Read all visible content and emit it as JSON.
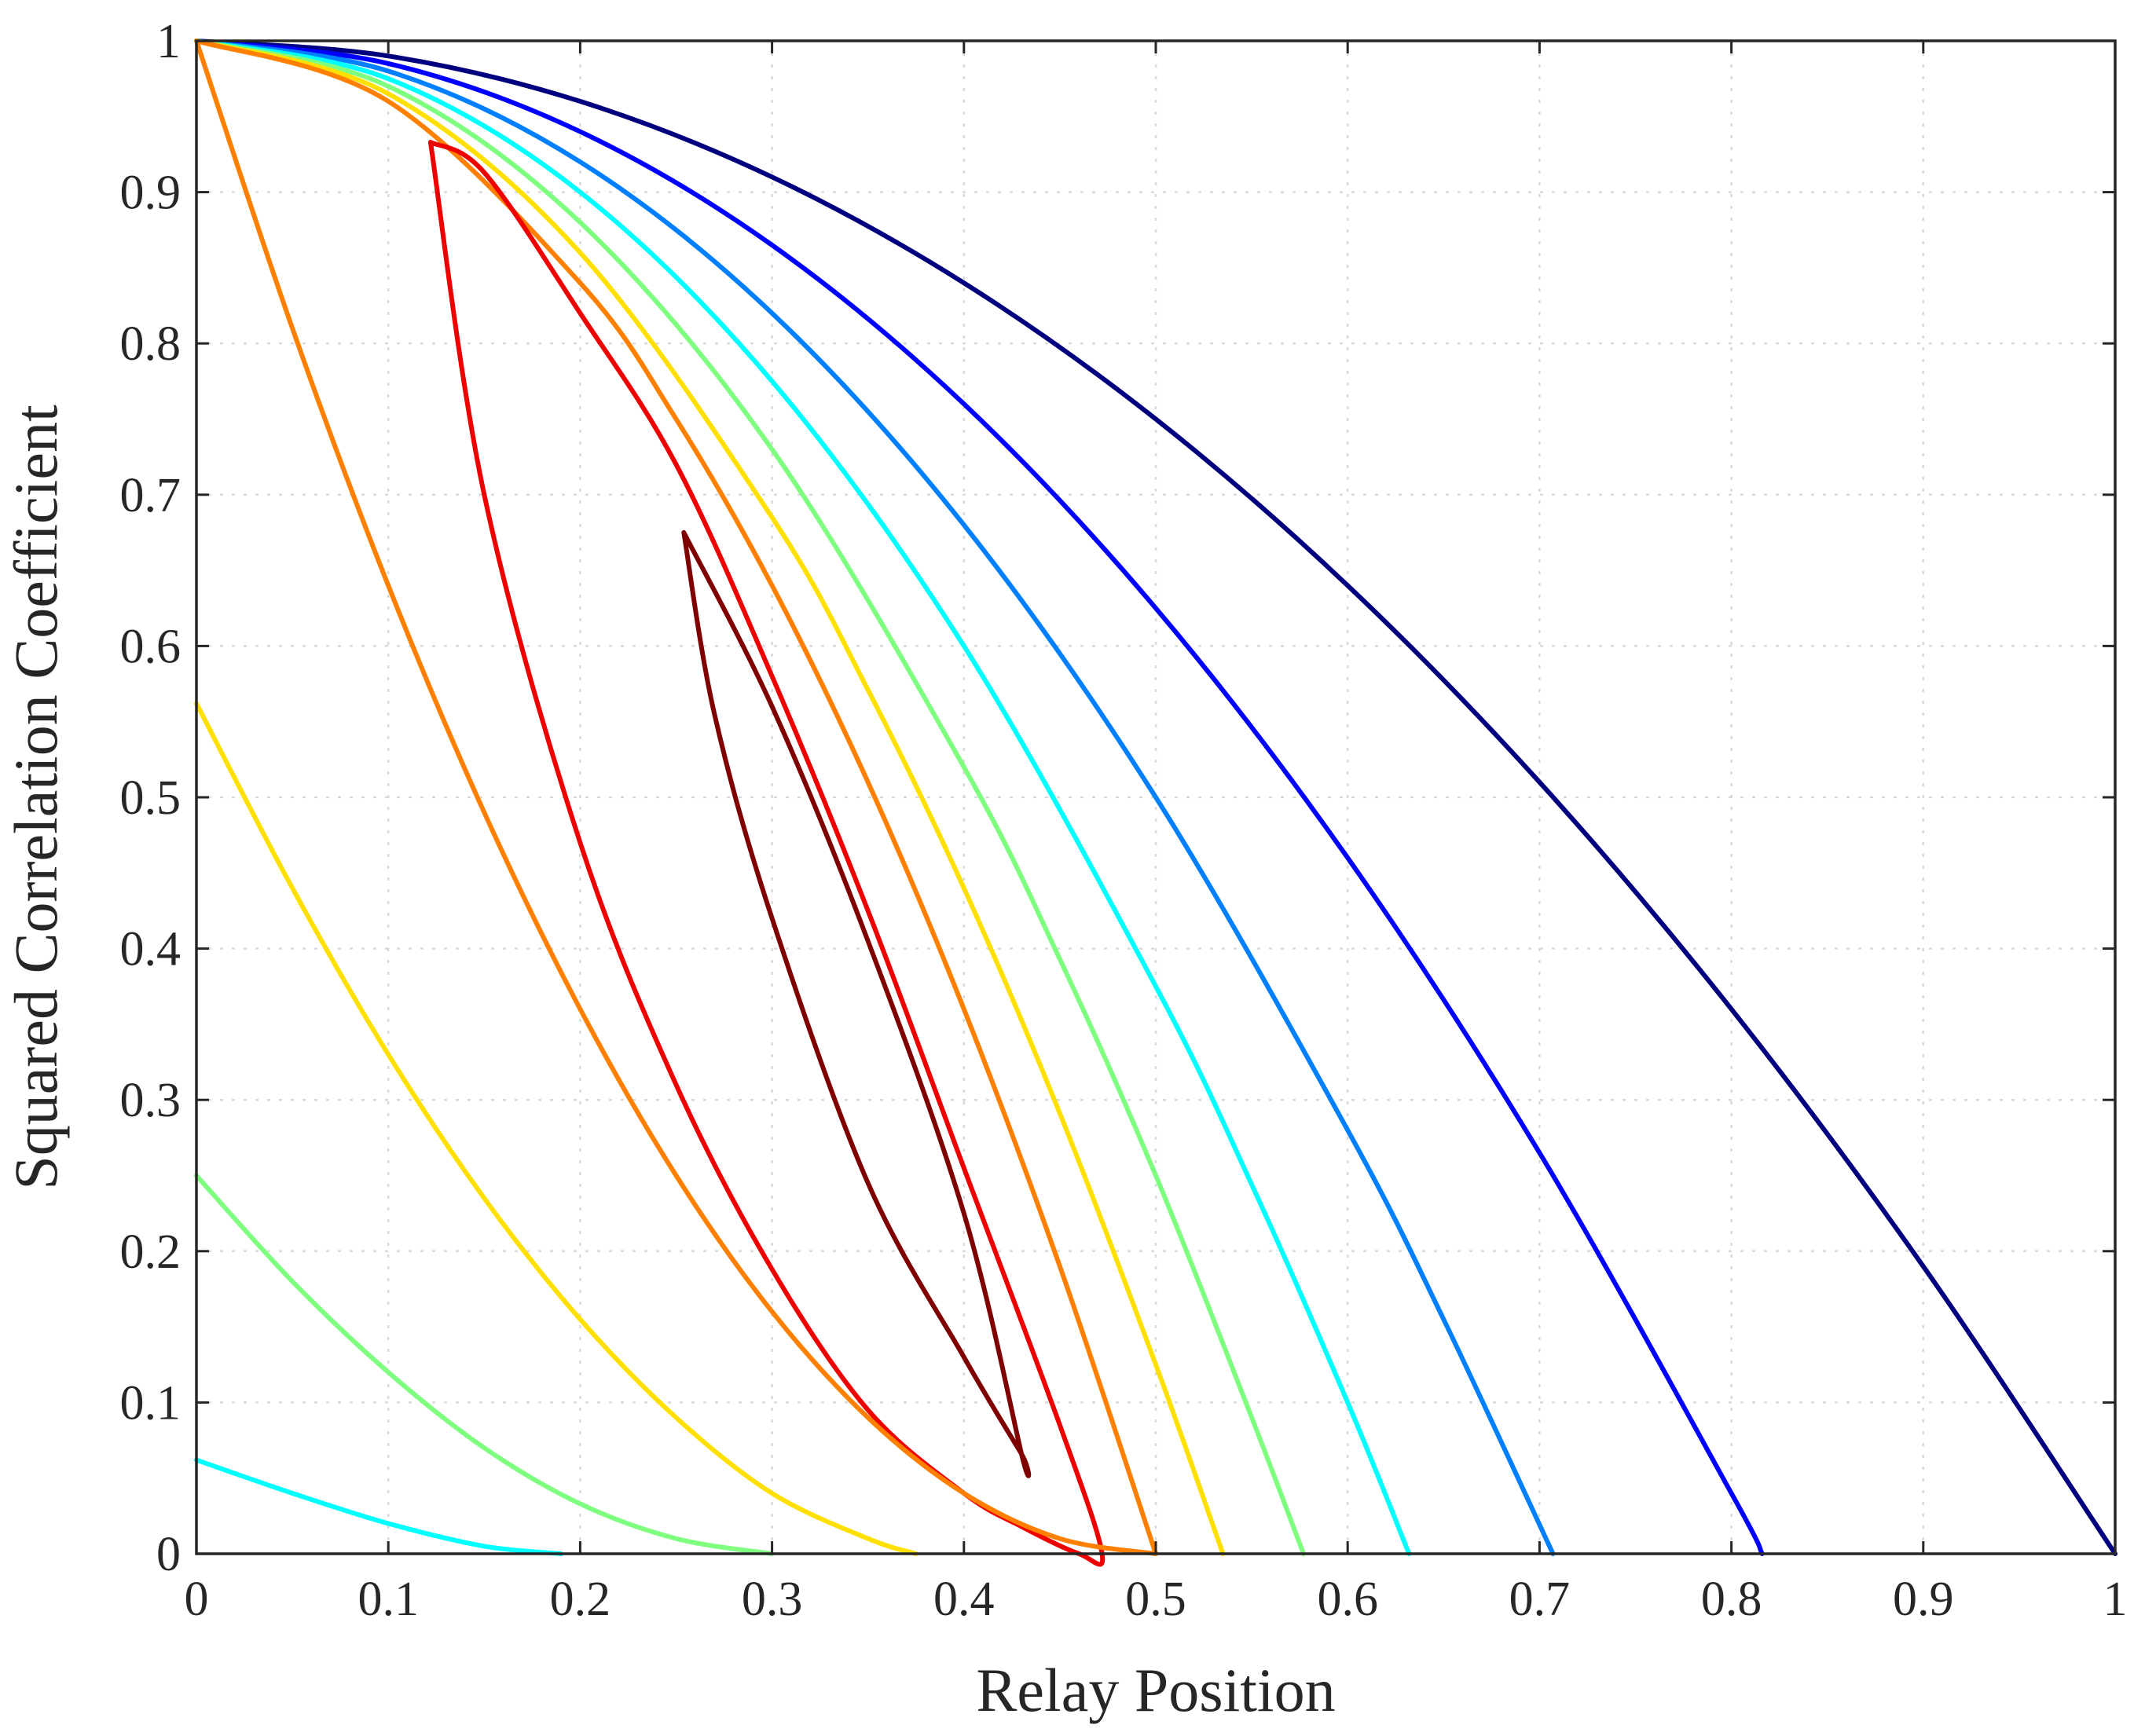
{
  "chart_data": {
    "type": "line",
    "title": "",
    "xlabel": "Relay Position",
    "ylabel": "Squared Correlation Coefficient",
    "xlim": [
      0,
      1
    ],
    "ylim": [
      0,
      1
    ],
    "grid": true,
    "x_ticks": [
      "0",
      "0.1",
      "0.2",
      "0.3",
      "0.4",
      "0.5",
      "0.6",
      "0.7",
      "0.8",
      "0.9",
      "1"
    ],
    "y_ticks": [
      "0",
      "0.1",
      "0.2",
      "0.3",
      "0.4",
      "0.5",
      "0.6",
      "0.7",
      "0.8",
      "0.9",
      "1"
    ],
    "series": [
      {
        "name": "curve-navy",
        "color": "#00007f",
        "points": [
          [
            0,
            1
          ],
          [
            0.1,
            0.99
          ],
          [
            0.2,
            0.96
          ],
          [
            0.3,
            0.91
          ],
          [
            0.4,
            0.84
          ],
          [
            0.5,
            0.75
          ],
          [
            0.6,
            0.64
          ],
          [
            0.7,
            0.51
          ],
          [
            0.8,
            0.36
          ],
          [
            0.9,
            0.19
          ],
          [
            1.0,
            0.0
          ]
        ]
      },
      {
        "name": "curve-blue",
        "color": "#0000ff",
        "points": [
          [
            0,
            1
          ],
          [
            0.1,
            0.985
          ],
          [
            0.2,
            0.94
          ],
          [
            0.3,
            0.865
          ],
          [
            0.4,
            0.76
          ],
          [
            0.5,
            0.625
          ],
          [
            0.6,
            0.46
          ],
          [
            0.7,
            0.265
          ],
          [
            0.8,
            0.04
          ],
          [
            0.816,
            0.0
          ]
        ]
      },
      {
        "name": "curve-azure",
        "color": "#007fff",
        "points": [
          [
            0,
            1
          ],
          [
            0.1,
            0.98
          ],
          [
            0.2,
            0.92
          ],
          [
            0.3,
            0.82
          ],
          [
            0.4,
            0.68
          ],
          [
            0.5,
            0.5
          ],
          [
            0.6,
            0.28
          ],
          [
            0.65,
            0.155
          ],
          [
            0.707,
            0.0
          ]
        ]
      },
      {
        "name": "curve-cyan-main",
        "color": "#00ffff",
        "points": [
          [
            0,
            1
          ],
          [
            0.1,
            0.975
          ],
          [
            0.2,
            0.9
          ],
          [
            0.3,
            0.775
          ],
          [
            0.4,
            0.6
          ],
          [
            0.5,
            0.375
          ],
          [
            0.55,
            0.244
          ],
          [
            0.6,
            0.1
          ],
          [
            0.632,
            0.0
          ]
        ]
      },
      {
        "name": "curve-green-main",
        "color": "#7fff7f",
        "points": [
          [
            0,
            1
          ],
          [
            0.1,
            0.97
          ],
          [
            0.2,
            0.88
          ],
          [
            0.3,
            0.73
          ],
          [
            0.4,
            0.52
          ],
          [
            0.45,
            0.393
          ],
          [
            0.5,
            0.25
          ],
          [
            0.55,
            0.09
          ],
          [
            0.577,
            0.0
          ]
        ]
      },
      {
        "name": "curve-yellow-main",
        "color": "#ffe000",
        "points": [
          [
            0,
            1
          ],
          [
            0.1,
            0.965
          ],
          [
            0.2,
            0.86
          ],
          [
            0.3,
            0.685
          ],
          [
            0.35,
            0.571
          ],
          [
            0.4,
            0.44
          ],
          [
            0.45,
            0.291
          ],
          [
            0.5,
            0.125
          ],
          [
            0.535,
            0.0
          ]
        ]
      },
      {
        "name": "curve-orange-main",
        "color": "#ff7f00",
        "points": [
          [
            0,
            1
          ],
          [
            0.1,
            0.96
          ],
          [
            0.2,
            0.84
          ],
          [
            0.25,
            0.75
          ],
          [
            0.3,
            0.64
          ],
          [
            0.35,
            0.51
          ],
          [
            0.4,
            0.36
          ],
          [
            0.45,
            0.19
          ],
          [
            0.5,
            0.0
          ]
        ]
      },
      {
        "name": "curve-red-loop",
        "color": "#ef0000",
        "points": [
          [
            0.122,
            0.933
          ],
          [
            0.15,
            0.913
          ],
          [
            0.2,
            0.82
          ],
          [
            0.25,
            0.72
          ],
          [
            0.3,
            0.58
          ],
          [
            0.35,
            0.425
          ],
          [
            0.4,
            0.255
          ],
          [
            0.45,
            0.085
          ],
          [
            0.472,
            0.0
          ],
          [
            0.46,
            0.0
          ],
          [
            0.43,
            0.018
          ],
          [
            0.4,
            0.04
          ],
          [
            0.35,
            0.095
          ],
          [
            0.3,
            0.188
          ],
          [
            0.25,
            0.31
          ],
          [
            0.2,
            0.47
          ],
          [
            0.15,
            0.7
          ],
          [
            0.122,
            0.933
          ]
        ]
      },
      {
        "name": "curve-darkred-loop",
        "color": "#7f0000",
        "points": [
          [
            0.254,
            0.675
          ],
          [
            0.3,
            0.56
          ],
          [
            0.35,
            0.405
          ],
          [
            0.4,
            0.225
          ],
          [
            0.43,
            0.066
          ],
          [
            0.43,
            0.066
          ],
          [
            0.4,
            0.13
          ],
          [
            0.35,
            0.245
          ],
          [
            0.3,
            0.42
          ],
          [
            0.27,
            0.555
          ],
          [
            0.254,
            0.675
          ]
        ]
      },
      {
        "name": "curve-orange-low",
        "color": "#ff7f00",
        "points": [
          [
            0,
            1
          ],
          [
            0.05,
            0.81
          ],
          [
            0.1,
            0.64
          ],
          [
            0.15,
            0.49
          ],
          [
            0.2,
            0.36
          ],
          [
            0.25,
            0.25
          ],
          [
            0.3,
            0.16
          ],
          [
            0.35,
            0.09
          ],
          [
            0.4,
            0.04
          ],
          [
            0.45,
            0.01
          ],
          [
            0.5,
            0.0
          ]
        ]
      },
      {
        "name": "curve-yellow-low",
        "color": "#ffe000",
        "points": [
          [
            0,
            0.562
          ],
          [
            0.05,
            0.44
          ],
          [
            0.1,
            0.33
          ],
          [
            0.15,
            0.235
          ],
          [
            0.2,
            0.155
          ],
          [
            0.25,
            0.09
          ],
          [
            0.3,
            0.04
          ],
          [
            0.35,
            0.01
          ],
          [
            0.375,
            0.0
          ]
        ]
      },
      {
        "name": "curve-green-low",
        "color": "#7fff7f",
        "points": [
          [
            0,
            0.25
          ],
          [
            0.05,
            0.18
          ],
          [
            0.1,
            0.12
          ],
          [
            0.15,
            0.07
          ],
          [
            0.2,
            0.033
          ],
          [
            0.25,
            0.01
          ],
          [
            0.3,
            0.0
          ]
        ]
      },
      {
        "name": "curve-cyan-low",
        "color": "#00ffff",
        "points": [
          [
            0,
            0.062
          ],
          [
            0.05,
            0.04
          ],
          [
            0.1,
            0.02
          ],
          [
            0.15,
            0.005
          ],
          [
            0.19,
            0.0
          ]
        ]
      }
    ]
  }
}
